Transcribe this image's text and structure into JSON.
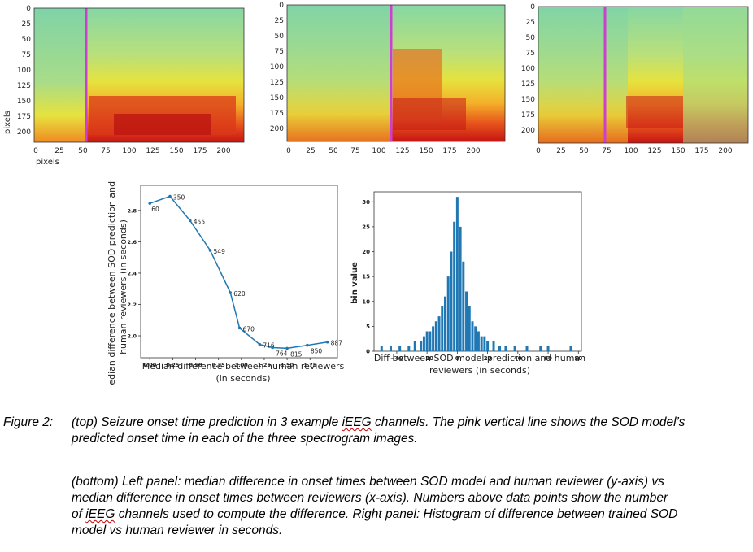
{
  "figure": {
    "spectrograms": {
      "axis_x_label": "pixels",
      "axis_y_label": "pixels",
      "x_ticks": [
        "0",
        "25",
        "50",
        "75",
        "100",
        "125",
        "150",
        "175",
        "200"
      ],
      "y_ticks": [
        "0",
        "25",
        "50",
        "75",
        "100",
        "125",
        "150",
        "175",
        "200"
      ],
      "colors": {
        "background": "#7fd39a",
        "hot": "#d01818",
        "warm": "#f5a020",
        "mid": "#e8e03a",
        "line": "#cc3fd0"
      }
    },
    "line_chart": {
      "ylabel_line1": "Median difference between SOD prediction and",
      "ylabel_line2": "human reviewers  (in seconds)",
      "xlabel_line1": "Median difference between human reviewers",
      "xlabel_line2": "(in seconds)"
    },
    "histogram": {
      "ylabel": "bin value",
      "xlabel_line1": "Diff between SOD model prediction and human",
      "xlabel_line2": "reviewers  (in seconds)"
    }
  },
  "chart_data": [
    {
      "type": "line",
      "title": "",
      "xlabel": "Median difference between human reviewers (in seconds)",
      "ylabel": "Median difference between SOD prediction and human reviewers (in seconds)",
      "x": [
        0.0,
        0.22,
        0.44,
        0.66,
        0.88,
        0.98,
        1.2,
        1.34,
        1.5,
        1.72,
        1.94
      ],
      "y": [
        2.845,
        2.89,
        2.735,
        2.545,
        2.275,
        2.05,
        1.945,
        1.925,
        1.92,
        1.94,
        1.96
      ],
      "point_labels": [
        "60",
        "350",
        "455",
        "549",
        "620",
        "670",
        "716",
        "764",
        "815",
        "850",
        "887"
      ],
      "x_ticks": [
        "0.00",
        "0.25",
        "0.50",
        "0.75",
        "1.00",
        "1.25",
        "1.50",
        "1.75"
      ],
      "y_ticks": [
        "2.0",
        "2.2",
        "2.4",
        "2.6",
        "2.8"
      ],
      "xlim": [
        -0.1,
        2.05
      ],
      "ylim": [
        1.86,
        2.96
      ],
      "color": "#1f77b4"
    },
    {
      "type": "bar",
      "title": "",
      "xlabel": "Diff between SOD model prediction and human reviewers (in seconds)",
      "ylabel": "bin value",
      "x_ticks": [
        "−40",
        "−20",
        "0",
        "20",
        "40",
        "60",
        "80"
      ],
      "y_ticks": [
        "0",
        "5",
        "10",
        "15",
        "20",
        "25",
        "30"
      ],
      "xlim": [
        -55,
        82
      ],
      "ylim": [
        0,
        32
      ],
      "bins": [
        -50,
        -44,
        -38,
        -32,
        -28,
        -24,
        -22,
        -20,
        -18,
        -16,
        -14,
        -12,
        -10,
        -8,
        -6,
        -4,
        -2,
        0,
        2,
        4,
        6,
        8,
        10,
        12,
        14,
        16,
        18,
        20,
        24,
        28,
        32,
        38,
        46,
        55,
        60,
        75
      ],
      "values": [
        1,
        1,
        1,
        1,
        2,
        2,
        3,
        4,
        4,
        5,
        6,
        7,
        9,
        11,
        15,
        20,
        26,
        31,
        25,
        18,
        12,
        9,
        6,
        5,
        4,
        3,
        3,
        2,
        2,
        1,
        1,
        1,
        1,
        1,
        1,
        1
      ],
      "color": "#1f77b4"
    }
  ],
  "caption": {
    "label": "Figure 2:",
    "p1_line1_pre": "(top) Seizure onset time prediction in 3 example ",
    "p1_line1_term": "iEEG",
    "p1_line1_post": " channels. The pink vertical line shows the SOD model’s",
    "p1_line2": "predicted onset time in each of the three spectrogram images.",
    "p2_line1": "(bottom) Left panel: median difference in onset times between SOD model and human reviewer (y-axis) vs",
    "p2_line2": "median difference in onset times between reviewers (x-axis). Numbers above data points show the number",
    "p2_line3_term": "iEEG",
    "p2_line3_post": " channels used to compute the difference. Right panel: Histogram of difference between trained SOD",
    "p2_line3_pre": "of ",
    "p2_line4": "model vs human reviewer in seconds."
  }
}
